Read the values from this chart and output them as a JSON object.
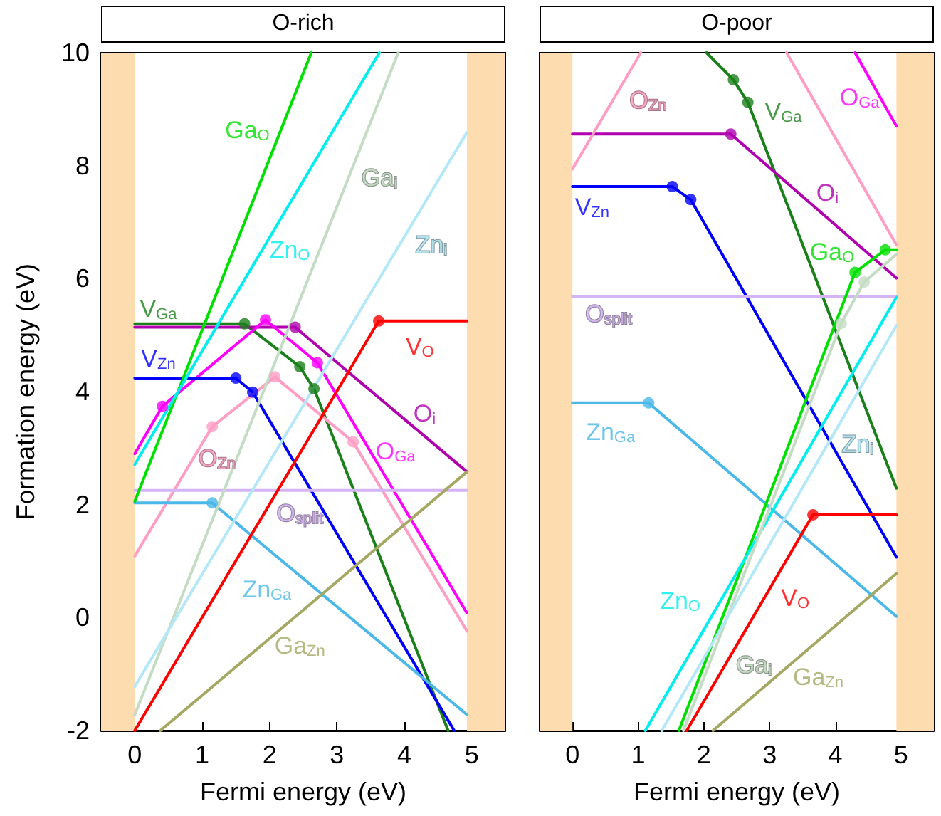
{
  "chart_data": [
    {
      "type": "line",
      "title": "O-rich",
      "xlabel": "Fermi energy (eV)",
      "ylabel": "Formation energy (eV)",
      "xlim": [
        -0.5,
        5.5
      ],
      "ylim": [
        -2,
        10
      ],
      "xticks": [
        0,
        1,
        2,
        3,
        4,
        5
      ],
      "yticks": [
        -2,
        0,
        2,
        4,
        6,
        8,
        10
      ],
      "bands": [
        {
          "axis": "x",
          "from": -0.5,
          "to": 0,
          "color": "#fddcb0"
        },
        {
          "axis": "x",
          "from": 4.93,
          "to": 5.5,
          "color": "#fddcb0"
        }
      ],
      "series": [
        {
          "name": "V$_{Ga}$",
          "color": "#1a801a",
          "x": [
            0,
            1.63,
            2.45,
            2.66,
            4.65
          ],
          "values": [
            5.2,
            5.2,
            4.44,
            4.05,
            -2
          ]
        },
        {
          "name": "O$_{i}$",
          "color": "#b000b0",
          "x": [
            0,
            2.38,
            4.93
          ],
          "values": [
            5.14,
            5.14,
            2.58
          ]
        },
        {
          "name": "O$_{Ga}$",
          "color": "#ff00ff",
          "x": [
            0,
            0.41,
            1.94,
            2.71,
            4.93
          ],
          "values": [
            2.9,
            3.74,
            5.27,
            4.51,
            0.08
          ]
        },
        {
          "name": "V$_{Zn}$",
          "color": "#0000ff",
          "x": [
            0,
            1.5,
            1.75,
            4.74
          ],
          "values": [
            4.24,
            4.24,
            3.99,
            -2
          ]
        },
        {
          "name": "O$_{Zn}$",
          "color": "#ff9ec4",
          "x": [
            0,
            1.15,
            2.08,
            3.24,
            4.93
          ],
          "values": [
            1.09,
            3.38,
            4.26,
            3.11,
            -0.24
          ]
        },
        {
          "name": "O$_{split}$",
          "color": "#d4b4f4",
          "x": [
            0,
            4.93
          ],
          "values": [
            2.25,
            2.25
          ]
        },
        {
          "name": "Zn$_{Ga}$",
          "color": "#4ab8e8",
          "x": [
            0,
            1.15,
            4.93
          ],
          "values": [
            2.03,
            2.03,
            -1.72
          ]
        },
        {
          "name": "Ga$_{Zn}$",
          "color": "#a4a862",
          "x": [
            0.38,
            4.93
          ],
          "values": [
            -2,
            2.58
          ]
        },
        {
          "name": "V$_{O}$",
          "color": "#ff0000",
          "x": [
            0,
            3.62,
            4.93
          ],
          "values": [
            -2,
            5.25,
            5.25
          ]
        },
        {
          "name": "Ga$_{O}$",
          "color": "#00e000",
          "x": [
            0,
            2.62
          ],
          "values": [
            2.06,
            10
          ]
        },
        {
          "name": "Zn$_{O}$",
          "color": "#00eeee",
          "x": [
            0,
            3.63
          ],
          "values": [
            2.71,
            10
          ]
        },
        {
          "name": "Ga$_{i}$",
          "color": "#c4dcc4",
          "x": [
            0,
            3.91
          ],
          "values": [
            -1.72,
            10
          ]
        },
        {
          "name": "Zn$_{i}$",
          "color": "#b4e8f8",
          "x": [
            0,
            4.93
          ],
          "values": [
            -1.22,
            8.59
          ]
        },
        {
          "type": "scatter",
          "marker": "circle",
          "x": [
            1.63,
            2.45,
            2.66,
            2.38,
            0.41,
            1.94,
            2.71,
            1.5,
            1.75,
            1.15,
            2.08,
            3.24,
            1.15,
            3.62
          ],
          "values": [
            5.2,
            4.44,
            4.05,
            5.14,
            3.74,
            5.27,
            4.51,
            4.24,
            3.99,
            3.38,
            4.26,
            3.11,
            2.03,
            5.25
          ],
          "colors": [
            "#1a801a",
            "#1a801a",
            "#1a801a",
            "#b000b0",
            "#ff00ff",
            "#ff00ff",
            "#ff00ff",
            "#0000ff",
            "#0000ff",
            "#ff9ec4",
            "#ff9ec4",
            "#ff9ec4",
            "#4ab8e8",
            "#ff0000"
          ]
        }
      ]
    },
    {
      "type": "line",
      "title": "O-poor",
      "xlabel": "Fermi energy (eV)",
      "xlim": [
        -0.5,
        5.5
      ],
      "ylim": [
        -2,
        10
      ],
      "xticks": [
        0,
        1,
        2,
        3,
        4,
        5
      ],
      "yticks": [
        -2,
        0,
        2,
        4,
        6,
        8,
        10
      ],
      "tick_labels": "x",
      "bands": [
        {
          "axis": "x",
          "from": -0.5,
          "to": 0,
          "color": "#fddcb0"
        },
        {
          "axis": "x",
          "from": 4.93,
          "to": 5.5,
          "color": "#fddcb0"
        }
      ],
      "series": [
        {
          "name": "V$_{Ga}$",
          "color": "#1a801a",
          "x": [
            2.04,
            2.45,
            2.67,
            4.93
          ],
          "values": [
            10,
            9.52,
            9.12,
            2.29
          ]
        },
        {
          "name": "O$_{i}$",
          "color": "#b000b0",
          "x": [
            0,
            2.41,
            4.93
          ],
          "values": [
            8.56,
            8.56,
            6.01
          ]
        },
        {
          "name": "O$_{Ga}$",
          "color": "#ff00ff",
          "x": [
            4.3,
            4.93
          ],
          "values": [
            10,
            8.7
          ]
        },
        {
          "name": "V$_{Zn}$",
          "color": "#0000ff",
          "x": [
            0,
            1.52,
            1.8,
            4.93
          ],
          "values": [
            7.63,
            7.63,
            7.4,
            1.07
          ]
        },
        {
          "name": "O$_{Zn}$",
          "color": "#ff9ec4",
          "x": [
            0,
            1.04,
            2.15,
            3.26,
            4.93
          ],
          "values": [
            7.94,
            10,
            null,
            10,
            6.6
          ]
        },
        {
          "name": "O$_{split}$",
          "color": "#d4b4f4",
          "x": [
            0,
            4.93
          ],
          "values": [
            5.69,
            5.69
          ]
        },
        {
          "name": "Zn$_{Ga}$",
          "color": "#4ab8e8",
          "x": [
            0,
            1.16,
            4.93
          ],
          "values": [
            3.8,
            3.8,
            0.02
          ]
        },
        {
          "name": "Ga$_{Zn}$",
          "color": "#a4a862",
          "x": [
            2.14,
            4.93
          ],
          "values": [
            -2,
            0.78
          ]
        },
        {
          "name": "V$_{O}$",
          "color": "#ff0000",
          "x": [
            1.74,
            3.66,
            4.93
          ],
          "values": [
            -2,
            1.82,
            1.82
          ]
        },
        {
          "name": "Ga$_{O}$",
          "color": "#00e000",
          "x": [
            1.62,
            4.3,
            4.76,
            4.93
          ],
          "values": [
            -2,
            6.11,
            6.51,
            6.51
          ]
        },
        {
          "name": "Zn$_{O}$",
          "color": "#00eeee",
          "x": [
            1.11,
            4.93
          ],
          "values": [
            -2,
            5.67
          ]
        },
        {
          "name": "Ga$_{i}$",
          "color": "#c4dcc4",
          "x": [
            1.69,
            4.09,
            4.44,
            4.93
          ],
          "values": [
            -2,
            5.21,
            5.94,
            6.43
          ]
        },
        {
          "name": "Zn$_{i}$",
          "color": "#b4e8f8",
          "x": [
            1.36,
            4.93
          ],
          "values": [
            -2,
            5.17
          ]
        },
        {
          "type": "scatter",
          "marker": "circle",
          "x": [
            2.45,
            2.67,
            2.41,
            1.52,
            1.8,
            1.16,
            3.66,
            4.3,
            4.76,
            4.09,
            4.44
          ],
          "values": [
            9.52,
            9.12,
            8.56,
            7.63,
            7.4,
            3.8,
            1.82,
            6.11,
            6.51,
            5.21,
            5.94
          ],
          "colors": [
            "#1a801a",
            "#1a801a",
            "#b000b0",
            "#0000ff",
            "#0000ff",
            "#4ab8e8",
            "#ff0000",
            "#00e000",
            "#00e000",
            "#c4dcc4",
            "#c4dcc4"
          ]
        }
      ]
    }
  ]
}
